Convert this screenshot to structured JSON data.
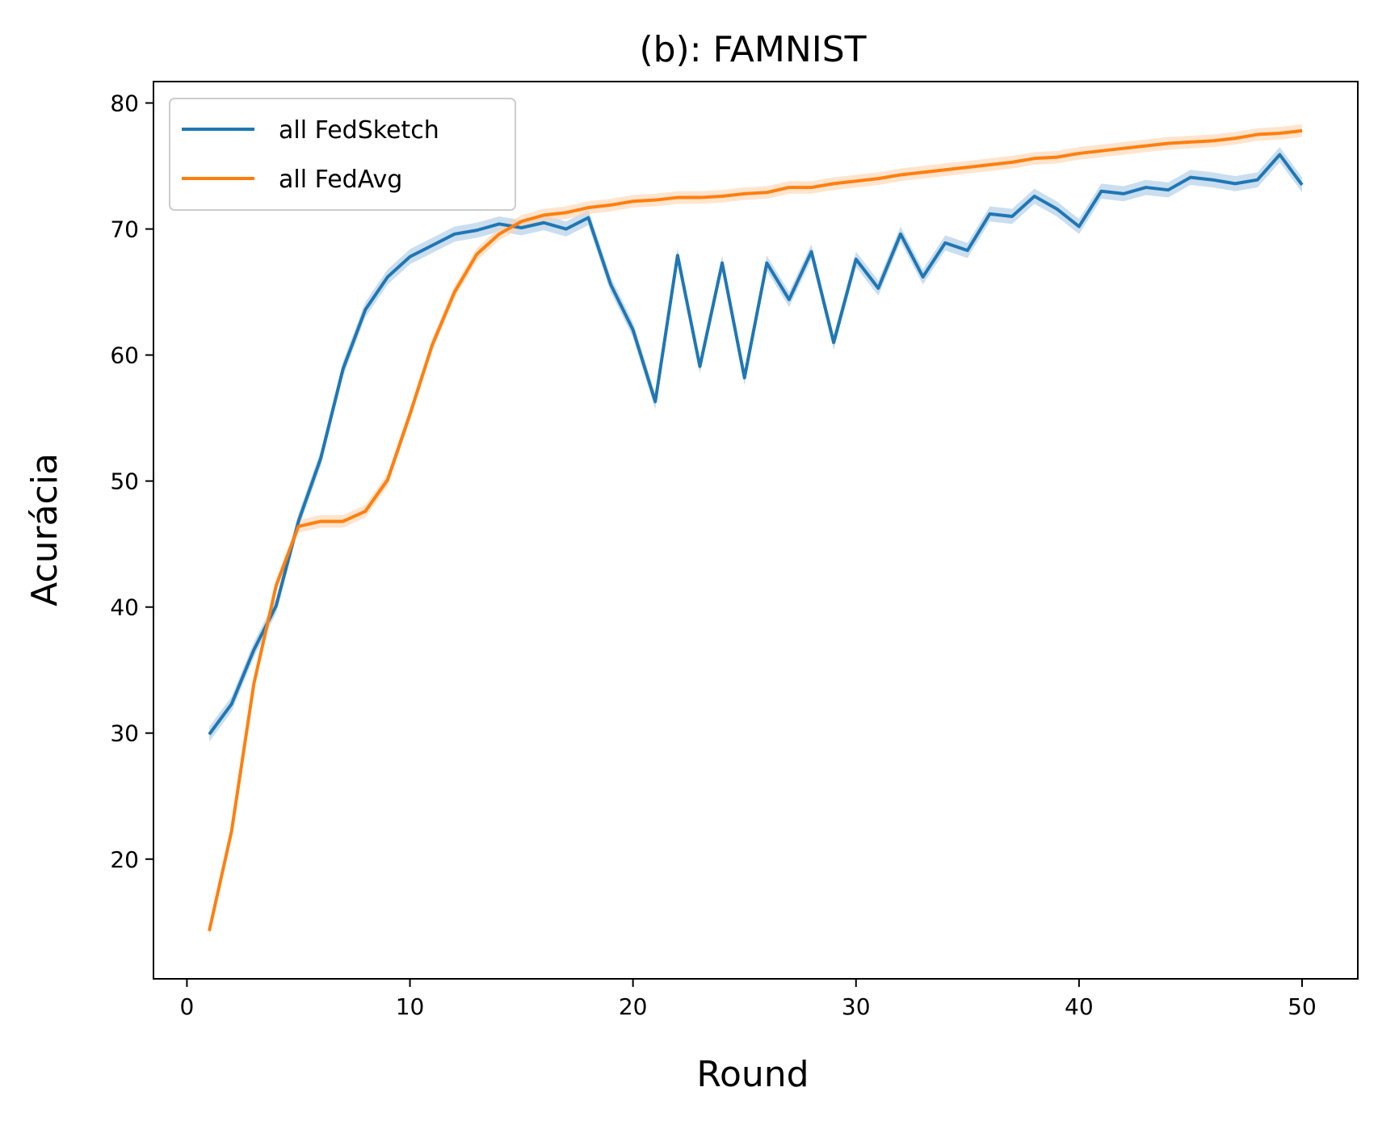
{
  "chart_data": {
    "type": "line",
    "title": "(b): FAMNIST",
    "xlabel": "Round",
    "ylabel": "Acurácia",
    "xlim": [
      -1.5,
      52.5
    ],
    "ylim": [
      10.5,
      81.7
    ],
    "xticks": [
      0,
      10,
      20,
      30,
      40,
      50
    ],
    "yticks": [
      20,
      30,
      40,
      50,
      60,
      70,
      80
    ],
    "grid": false,
    "legend_position": "upper-left",
    "x": [
      1,
      2,
      3,
      4,
      5,
      6,
      7,
      8,
      9,
      10,
      11,
      12,
      13,
      14,
      15,
      16,
      17,
      18,
      19,
      20,
      21,
      22,
      23,
      24,
      25,
      26,
      27,
      28,
      29,
      30,
      31,
      32,
      33,
      34,
      35,
      36,
      37,
      38,
      39,
      40,
      41,
      42,
      43,
      44,
      45,
      46,
      47,
      48,
      49,
      50
    ],
    "series": [
      {
        "name": "all FedSketch",
        "color": "#1f77b4",
        "band_color": "#a6c8e4",
        "band_halfwidth": 0.6,
        "values": [
          29.9,
          32.3,
          36.6,
          40.1,
          46.8,
          51.8,
          58.9,
          63.6,
          66.2,
          67.8,
          68.7,
          69.6,
          69.9,
          70.4,
          70.1,
          70.5,
          70.0,
          70.9,
          65.6,
          62.0,
          56.3,
          67.9,
          59.1,
          67.3,
          58.2,
          67.3,
          64.4,
          68.2,
          61.0,
          67.6,
          65.3,
          69.6,
          66.2,
          68.9,
          68.3,
          71.2,
          71.0,
          72.6,
          71.6,
          70.2,
          73.0,
          72.8,
          73.3,
          73.1,
          74.1,
          73.9,
          73.6,
          73.9,
          75.9,
          73.5
        ]
      },
      {
        "name": "all FedAvg",
        "color": "#ff7f0e",
        "band_color": "#ffd2ae",
        "band_halfwidth": 0.5,
        "values": [
          14.3,
          22.2,
          33.9,
          41.7,
          46.4,
          46.8,
          46.8,
          47.6,
          50.1,
          55.3,
          60.8,
          65.0,
          68.0,
          69.6,
          70.6,
          71.1,
          71.3,
          71.7,
          71.9,
          72.2,
          72.3,
          72.5,
          72.5,
          72.6,
          72.8,
          72.9,
          73.3,
          73.3,
          73.6,
          73.8,
          74.0,
          74.3,
          74.5,
          74.7,
          74.9,
          75.1,
          75.3,
          75.6,
          75.7,
          76.0,
          76.2,
          76.4,
          76.6,
          76.8,
          76.9,
          77.0,
          77.2,
          77.5,
          77.6,
          77.8
        ]
      }
    ]
  }
}
